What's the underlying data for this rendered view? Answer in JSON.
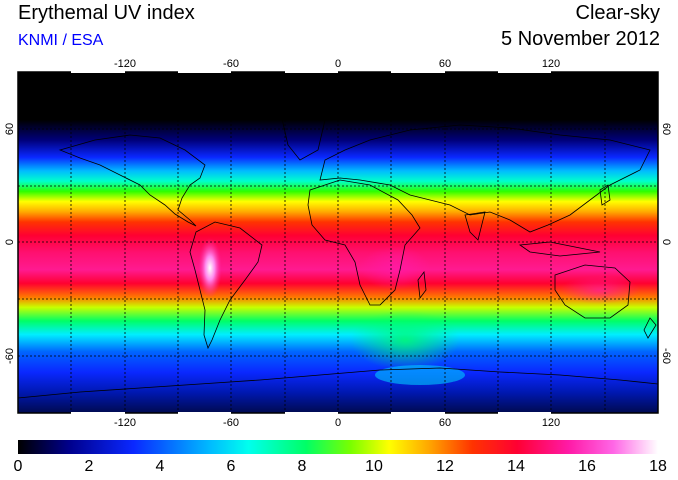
{
  "header": {
    "title": "Erythemal UV index",
    "source": "KNMI / ESA",
    "condition": "Clear-sky",
    "date": "5 November 2012"
  },
  "colors": {
    "source_text": "#0000ff",
    "frame": "#000000",
    "coast": "#000000",
    "colormap": [
      "#000000",
      "#00008c",
      "#0a28ff",
      "#00bbff",
      "#00ffee",
      "#00ff66",
      "#7aff00",
      "#ffff00",
      "#ffaa00",
      "#ff3300",
      "#ff0033",
      "#ff1aa6",
      "#ff66e6",
      "#ffffff"
    ]
  },
  "map": {
    "projection": "equirectangular",
    "lon_range": [
      -180,
      180
    ],
    "lat_range": [
      -90,
      90
    ],
    "grid": "dashed",
    "top_lon_ticks": [
      "-120",
      "-60",
      "0",
      "60",
      "120"
    ],
    "bottom_lon_ticks": [
      "-120",
      "-60",
      "0",
      "60",
      "120"
    ],
    "left_lat_ticks": [
      "60",
      "0",
      "-60"
    ],
    "right_lat_ticks": [
      "60",
      "0",
      "-60"
    ]
  },
  "colorbar": {
    "range": [
      0,
      18
    ],
    "labels": [
      "0",
      "2",
      "4",
      "6",
      "8",
      "10",
      "12",
      "14",
      "16",
      "18"
    ]
  }
}
